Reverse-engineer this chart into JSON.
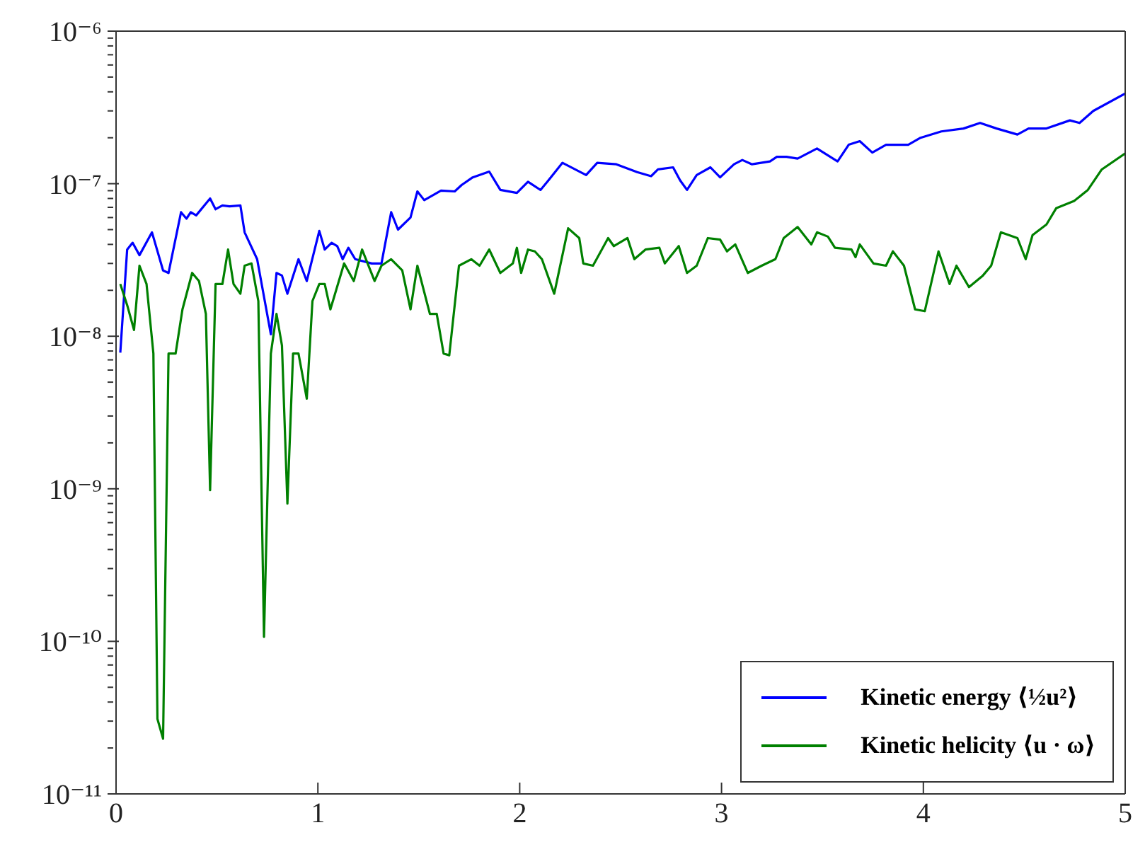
{
  "chart_data": {
    "type": "line",
    "log": "y",
    "xlim": [
      0,
      5
    ],
    "xticks": [
      0,
      1,
      2,
      3,
      4,
      5
    ],
    "ylim": [
      1e-11,
      1e-06
    ],
    "yticks": [
      {
        "value": 1e-11,
        "label": "10⁻¹¹"
      },
      {
        "value": 2e-11,
        "label": null
      },
      {
        "value": 3e-11,
        "label": null
      },
      {
        "value": 4e-11,
        "label": null
      },
      {
        "value": 5e-11,
        "label": null
      },
      {
        "value": 6e-11,
        "label": null
      },
      {
        "value": 7e-11,
        "label": null
      },
      {
        "value": 8e-11,
        "label": null
      },
      {
        "value": 9e-11,
        "label": null
      },
      {
        "value": 1e-10,
        "label": "10⁻¹⁰"
      },
      {
        "value": 2e-10,
        "label": null
      },
      {
        "value": 3e-10,
        "label": null
      },
      {
        "value": 4e-10,
        "label": null
      },
      {
        "value": 5e-10,
        "label": null
      },
      {
        "value": 6e-10,
        "label": null
      },
      {
        "value": 7e-10,
        "label": null
      },
      {
        "value": 8e-10,
        "label": null
      },
      {
        "value": 9e-10,
        "label": null
      },
      {
        "value": 1e-09,
        "label": "10⁻⁹"
      },
      {
        "value": 2e-09,
        "label": null
      },
      {
        "value": 3e-09,
        "label": null
      },
      {
        "value": 4e-09,
        "label": null
      },
      {
        "value": 5e-09,
        "label": null
      },
      {
        "value": 6e-09,
        "label": null
      },
      {
        "value": 7e-09,
        "label": null
      },
      {
        "value": 8e-09,
        "label": null
      },
      {
        "value": 9e-09,
        "label": null
      },
      {
        "value": 1e-08,
        "label": "10⁻⁸"
      },
      {
        "value": 2e-08,
        "label": null
      },
      {
        "value": 3e-08,
        "label": null
      },
      {
        "value": 4e-08,
        "label": null
      },
      {
        "value": 5e-08,
        "label": null
      },
      {
        "value": 6e-08,
        "label": null
      },
      {
        "value": 7e-08,
        "label": null
      },
      {
        "value": 8e-08,
        "label": null
      },
      {
        "value": 9e-08,
        "label": null
      },
      {
        "value": 1e-07,
        "label": "10⁻⁷"
      },
      {
        "value": 2e-07,
        "label": null
      },
      {
        "value": 3e-07,
        "label": null
      },
      {
        "value": 4e-07,
        "label": null
      },
      {
        "value": 5e-07,
        "label": null
      },
      {
        "value": 6e-07,
        "label": null
      },
      {
        "value": 7e-07,
        "label": null
      },
      {
        "value": 8e-07,
        "label": null
      },
      {
        "value": 9e-07,
        "label": null
      },
      {
        "value": 1e-06,
        "label": "10⁻⁶"
      }
    ],
    "legend": "bottom right",
    "marker": "none",
    "line_style": "solid",
    "series": [
      {
        "name": "Kinetic energy ⟨½u²⟩",
        "color": "#0000ff",
        "x": [
          0.021,
          0.055,
          0.082,
          0.116,
          0.178,
          0.233,
          0.26,
          0.322,
          0.349,
          0.37,
          0.397,
          0.466,
          0.493,
          0.527,
          0.562,
          0.616,
          0.637,
          0.699,
          0.767,
          0.795,
          0.822,
          0.849,
          0.904,
          0.945,
          1.007,
          1.034,
          1.068,
          1.096,
          1.123,
          1.151,
          1.185,
          1.267,
          1.315,
          1.363,
          1.397,
          1.459,
          1.493,
          1.527,
          1.61,
          1.678,
          1.712,
          1.767,
          1.849,
          1.904,
          1.986,
          2.041,
          2.103,
          2.137,
          2.212,
          2.329,
          2.384,
          2.479,
          2.582,
          2.651,
          2.685,
          2.76,
          2.795,
          2.829,
          2.877,
          2.945,
          2.993,
          3.062,
          3.103,
          3.151,
          3.24,
          3.274,
          3.322,
          3.377,
          3.473,
          3.575,
          3.63,
          3.685,
          3.747,
          3.815,
          3.925,
          3.986,
          4.089,
          4.199,
          4.281,
          4.363,
          4.466,
          4.521,
          4.61,
          4.726,
          4.774,
          4.842,
          5.0
        ],
        "values": [
          7.8e-09,
          3.7e-08,
          4.1e-08,
          3.4e-08,
          4.8e-08,
          2.7e-08,
          2.6e-08,
          6.5e-08,
          5.9e-08,
          6.5e-08,
          6.2e-08,
          8e-08,
          6.8e-08,
          7.2e-08,
          7.1e-08,
          7.2e-08,
          4.8e-08,
          3.2e-08,
          1.03e-08,
          2.6e-08,
          2.5e-08,
          1.9e-08,
          3.2e-08,
          2.3e-08,
          4.9e-08,
          3.7e-08,
          4.1e-08,
          3.9e-08,
          3.2e-08,
          3.8e-08,
          3.2e-08,
          3e-08,
          3e-08,
          6.5e-08,
          5e-08,
          6e-08,
          8.9e-08,
          7.8e-08,
          9e-08,
          8.9e-08,
          9.8e-08,
          1.1e-07,
          1.2e-07,
          9.1e-08,
          8.7e-08,
          1.03e-07,
          9.1e-08,
          1.03e-07,
          1.37e-07,
          1.14e-07,
          1.37e-07,
          1.34e-07,
          1.19e-07,
          1.12e-07,
          1.24e-07,
          1.28e-07,
          1.05e-07,
          9.1e-08,
          1.14e-07,
          1.28e-07,
          1.1e-07,
          1.34e-07,
          1.43e-07,
          1.34e-07,
          1.4e-07,
          1.5e-07,
          1.5e-07,
          1.46e-07,
          1.7e-07,
          1.4e-07,
          1.8e-07,
          1.9e-07,
          1.6e-07,
          1.8e-07,
          1.8e-07,
          2e-07,
          2.2e-07,
          2.3e-07,
          2.5e-07,
          2.3e-07,
          2.1e-07,
          2.3e-07,
          2.3e-07,
          2.6e-07,
          2.5e-07,
          3e-07,
          3.9e-07
        ]
      },
      {
        "name": "Kinetic helicity ⟨u · ω⟩",
        "color": "#008000",
        "x": [
          0.021,
          0.055,
          0.089,
          0.116,
          0.151,
          0.185,
          0.205,
          0.233,
          0.26,
          0.295,
          0.329,
          0.377,
          0.411,
          0.445,
          0.466,
          0.493,
          0.527,
          0.555,
          0.582,
          0.616,
          0.637,
          0.671,
          0.705,
          0.733,
          0.767,
          0.795,
          0.822,
          0.849,
          0.877,
          0.904,
          0.945,
          0.973,
          1.007,
          1.034,
          1.062,
          1.13,
          1.178,
          1.219,
          1.281,
          1.315,
          1.363,
          1.418,
          1.459,
          1.493,
          1.555,
          1.589,
          1.623,
          1.651,
          1.699,
          1.76,
          1.801,
          1.849,
          1.904,
          1.966,
          1.986,
          2.007,
          2.041,
          2.075,
          2.11,
          2.171,
          2.24,
          2.295,
          2.315,
          2.363,
          2.438,
          2.466,
          2.534,
          2.568,
          2.623,
          2.692,
          2.719,
          2.788,
          2.829,
          2.877,
          2.932,
          2.993,
          3.027,
          3.068,
          3.13,
          3.199,
          3.267,
          3.308,
          3.377,
          3.445,
          3.473,
          3.527,
          3.562,
          3.644,
          3.664,
          3.685,
          3.753,
          3.815,
          3.849,
          3.904,
          3.959,
          4.007,
          4.075,
          4.13,
          4.164,
          4.226,
          4.295,
          4.336,
          4.384,
          4.466,
          4.507,
          4.541,
          4.61,
          4.658,
          4.747,
          4.815,
          4.884,
          5.0
        ],
        "values": [
          2.2e-08,
          1.6e-08,
          1.1e-08,
          2.9e-08,
          2.2e-08,
          7.7e-09,
          3.1e-11,
          2.3e-11,
          7.7e-09,
          7.7e-09,
          1.5e-08,
          2.6e-08,
          2.3e-08,
          1.4e-08,
          9.8e-10,
          2.2e-08,
          2.2e-08,
          3.7e-08,
          2.2e-08,
          1.9e-08,
          2.9e-08,
          3e-08,
          1.7e-08,
          1.07e-10,
          7.7e-09,
          1.4e-08,
          8.7e-09,
          8e-10,
          7.7e-09,
          7.7e-09,
          3.9e-09,
          1.7e-08,
          2.2e-08,
          2.2e-08,
          1.5e-08,
          3e-08,
          2.3e-08,
          3.7e-08,
          2.3e-08,
          2.9e-08,
          3.2e-08,
          2.7e-08,
          1.5e-08,
          2.9e-08,
          1.4e-08,
          1.4e-08,
          7.7e-09,
          7.5e-09,
          2.9e-08,
          3.2e-08,
          2.9e-08,
          3.7e-08,
          2.6e-08,
          3e-08,
          3.8e-08,
          2.6e-08,
          3.7e-08,
          3.6e-08,
          3.2e-08,
          1.9e-08,
          5.1e-08,
          4.4e-08,
          3e-08,
          2.9e-08,
          4.4e-08,
          3.9e-08,
          4.4e-08,
          3.2e-08,
          3.7e-08,
          3.8e-08,
          3e-08,
          3.9e-08,
          2.6e-08,
          2.9e-08,
          4.4e-08,
          4.3e-08,
          3.6e-08,
          4e-08,
          2.6e-08,
          2.9e-08,
          3.2e-08,
          4.4e-08,
          5.2e-08,
          4e-08,
          4.8e-08,
          4.5e-08,
          3.8e-08,
          3.7e-08,
          3.3e-08,
          4e-08,
          3e-08,
          2.9e-08,
          3.6e-08,
          2.9e-08,
          1.5e-08,
          1.46e-08,
          3.6e-08,
          2.2e-08,
          2.9e-08,
          2.1e-08,
          2.5e-08,
          2.9e-08,
          4.8e-08,
          4.4e-08,
          3.2e-08,
          4.6e-08,
          5.4e-08,
          6.9e-08,
          7.7e-08,
          9.1e-08,
          1.24e-07,
          1.58e-07
        ]
      }
    ]
  }
}
